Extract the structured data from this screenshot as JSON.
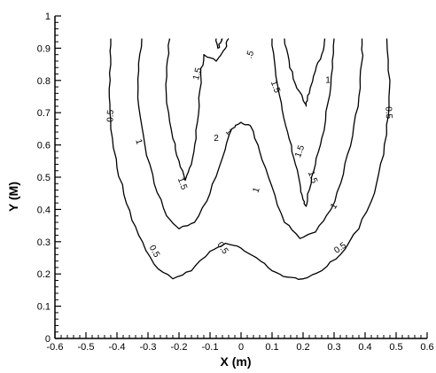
{
  "chart_data": {
    "type": "line",
    "title": "",
    "xlabel": "X (m)",
    "ylabel": "Y (M)",
    "xlim": [
      -0.6,
      0.6
    ],
    "ylim": [
      0,
      1
    ],
    "x_ticks": [
      "-0.6",
      "-0.5",
      "-0.4",
      "-0.3",
      "-0.2",
      "-0.1",
      "0",
      "0.1",
      "0.2",
      "0.3",
      "0.4",
      "0.5",
      "0.6"
    ],
    "y_ticks": [
      "0",
      "0.1",
      "0.2",
      "0.3",
      "0.4",
      "0.5",
      "0.6",
      "0.7",
      "0.8",
      "0.9",
      "1"
    ],
    "grid": false,
    "series": [
      {
        "level": "0.5",
        "points": [
          [
            -0.42,
            0.93
          ],
          [
            -0.42,
            0.85
          ],
          [
            -0.425,
            0.75
          ],
          [
            -0.42,
            0.65
          ],
          [
            -0.4,
            0.53
          ],
          [
            -0.37,
            0.42
          ],
          [
            -0.33,
            0.32
          ],
          [
            -0.28,
            0.23
          ],
          [
            -0.22,
            0.185
          ],
          [
            -0.16,
            0.21
          ],
          [
            -0.1,
            0.27
          ],
          [
            -0.05,
            0.295
          ],
          [
            0.0,
            0.28
          ],
          [
            0.05,
            0.25
          ],
          [
            0.1,
            0.21
          ],
          [
            0.15,
            0.19
          ],
          [
            0.2,
            0.185
          ],
          [
            0.26,
            0.21
          ],
          [
            0.32,
            0.26
          ],
          [
            0.38,
            0.34
          ],
          [
            0.43,
            0.45
          ],
          [
            0.46,
            0.57
          ],
          [
            0.475,
            0.69
          ],
          [
            0.48,
            0.8
          ],
          [
            0.47,
            0.93
          ]
        ]
      },
      {
        "level": "1",
        "points": [
          [
            -0.32,
            0.93
          ],
          [
            -0.33,
            0.83
          ],
          [
            -0.33,
            0.72
          ],
          [
            -0.31,
            0.6
          ],
          [
            -0.28,
            0.48
          ],
          [
            -0.24,
            0.38
          ],
          [
            -0.2,
            0.34
          ],
          [
            -0.15,
            0.36
          ],
          [
            -0.1,
            0.45
          ],
          [
            -0.06,
            0.56
          ],
          [
            -0.03,
            0.65
          ],
          [
            0.0,
            0.67
          ],
          [
            0.03,
            0.66
          ],
          [
            0.06,
            0.58
          ],
          [
            0.1,
            0.47
          ],
          [
            0.14,
            0.36
          ],
          [
            0.19,
            0.31
          ],
          [
            0.24,
            0.33
          ],
          [
            0.29,
            0.4
          ],
          [
            0.33,
            0.51
          ],
          [
            0.36,
            0.63
          ],
          [
            0.38,
            0.75
          ],
          [
            0.39,
            0.86
          ],
          [
            0.39,
            0.93
          ]
        ]
      },
      {
        "level": "1.5",
        "points": [
          [
            -0.23,
            0.93
          ],
          [
            -0.24,
            0.84
          ],
          [
            -0.24,
            0.73
          ],
          [
            -0.22,
            0.62
          ],
          [
            -0.2,
            0.55
          ],
          [
            -0.18,
            0.49
          ],
          [
            -0.16,
            0.54
          ],
          [
            -0.145,
            0.62
          ],
          [
            -0.135,
            0.72
          ],
          [
            -0.13,
            0.82
          ],
          [
            -0.12,
            0.88
          ],
          [
            -0.08,
            0.86
          ],
          [
            -0.05,
            0.9
          ],
          [
            -0.04,
            0.93
          ]
        ]
      },
      {
        "level": "1.5",
        "points": [
          [
            0.1,
            0.93
          ],
          [
            0.11,
            0.84
          ],
          [
            0.13,
            0.73
          ],
          [
            0.15,
            0.64
          ],
          [
            0.17,
            0.56
          ],
          [
            0.19,
            0.48
          ],
          [
            0.2,
            0.43
          ],
          [
            0.21,
            0.41
          ],
          [
            0.22,
            0.46
          ],
          [
            0.24,
            0.54
          ],
          [
            0.26,
            0.62
          ],
          [
            0.28,
            0.73
          ],
          [
            0.295,
            0.84
          ],
          [
            0.3,
            0.93
          ]
        ]
      },
      {
        "level": "2",
        "points": [
          [
            0.14,
            0.93
          ],
          [
            0.155,
            0.86
          ],
          [
            0.175,
            0.79
          ],
          [
            0.2,
            0.74
          ],
          [
            0.21,
            0.72
          ],
          [
            0.22,
            0.76
          ],
          [
            0.24,
            0.83
          ],
          [
            0.26,
            0.88
          ],
          [
            0.27,
            0.93
          ]
        ]
      },
      {
        "level": "2",
        "points": [
          [
            -0.08,
            0.93
          ],
          [
            -0.075,
            0.9
          ],
          [
            -0.065,
            0.92
          ],
          [
            -0.06,
            0.93
          ]
        ]
      }
    ],
    "annotations": [
      {
        "text": "0.5",
        "x": -0.42,
        "y": 0.69,
        "rotate": -88
      },
      {
        "text": "0.5",
        "x": -0.28,
        "y": 0.27,
        "rotate": 62
      },
      {
        "text": "0.5",
        "x": -0.06,
        "y": 0.28,
        "rotate": 55
      },
      {
        "text": "0.5",
        "x": 0.32,
        "y": 0.28,
        "rotate": -35
      },
      {
        "text": "0.5",
        "x": 0.475,
        "y": 0.7,
        "rotate": 88
      },
      {
        "text": "1",
        "x": -0.33,
        "y": 0.61,
        "rotate": 72
      },
      {
        "text": "1",
        "x": -0.04,
        "y": 0.64,
        "rotate": 50
      },
      {
        "text": "1",
        "x": 0.05,
        "y": 0.46,
        "rotate": -70
      },
      {
        "text": "1",
        "x": 0.3,
        "y": 0.41,
        "rotate": -55
      },
      {
        "text": "1.5",
        "x": -0.14,
        "y": 0.82,
        "rotate": -75
      },
      {
        "text": "1.5",
        "x": -0.19,
        "y": 0.48,
        "rotate": 70
      },
      {
        "text": "1.5",
        "x": 0.11,
        "y": 0.78,
        "rotate": 70
      },
      {
        "text": "1.5",
        "x": 0.19,
        "y": 0.58,
        "rotate": -70
      },
      {
        "text": "1.5",
        "x": 0.23,
        "y": 0.5,
        "rotate": 70
      },
      {
        "text": "2",
        "x": -0.08,
        "y": 0.62,
        "rotate": 0
      },
      {
        "text": "1",
        "x": 0.28,
        "y": 0.8,
        "rotate": 0
      },
      {
        "text": ".5",
        "x": 0.03,
        "y": 0.88,
        "rotate": -70
      }
    ]
  }
}
